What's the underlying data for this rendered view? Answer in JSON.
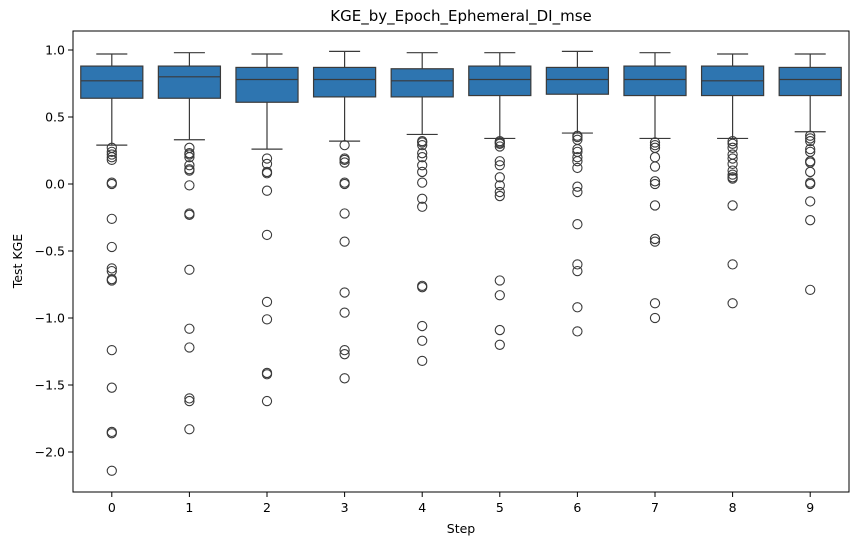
{
  "chart_data": {
    "type": "box",
    "title": "KGE_by_Epoch_Ephemeral_DI_mse",
    "xlabel": "Step",
    "ylabel": "Test KGE",
    "categories": [
      "0",
      "1",
      "2",
      "3",
      "4",
      "5",
      "6",
      "7",
      "8",
      "9"
    ],
    "yticks": [
      1.0,
      0.5,
      0.0,
      -0.5,
      -1.0,
      -1.5,
      -2.0
    ],
    "ytick_labels": [
      "1.0",
      "0.5",
      "0.0",
      "−0.5",
      "−1.0",
      "−1.5",
      "−2.0"
    ],
    "ylim": [
      -2.3,
      1.15
    ],
    "grid": false,
    "box_color": "#2e75b0",
    "line_color": "#3a3a3a",
    "boxes": [
      {
        "step": "0",
        "whisker_low": 0.29,
        "q1": 0.64,
        "median": 0.77,
        "q3": 0.88,
        "whisker_high": 0.97,
        "outliers": [
          0.27,
          0.24,
          0.22,
          0.2,
          0.18,
          0.01,
          0.0,
          -0.26,
          -0.47,
          -0.63,
          -0.65,
          -0.71,
          -0.72,
          -1.24,
          -1.52,
          -1.85,
          -1.86,
          -2.14
        ]
      },
      {
        "step": "1",
        "whisker_low": 0.33,
        "q1": 0.64,
        "median": 0.8,
        "q3": 0.88,
        "whisker_high": 0.98,
        "outliers": [
          0.27,
          0.23,
          0.22,
          0.2,
          0.14,
          0.11,
          0.1,
          -0.01,
          -0.22,
          -0.23,
          -0.64,
          -1.08,
          -1.22,
          -1.6,
          -1.62,
          -1.83
        ]
      },
      {
        "step": "2",
        "whisker_low": 0.26,
        "q1": 0.61,
        "median": 0.78,
        "q3": 0.87,
        "whisker_high": 0.97,
        "outliers": [
          0.19,
          0.15,
          0.09,
          0.08,
          -0.05,
          -0.38,
          -0.88,
          -1.01,
          -1.41,
          -1.42,
          -1.62
        ]
      },
      {
        "step": "3",
        "whisker_low": 0.32,
        "q1": 0.65,
        "median": 0.78,
        "q3": 0.87,
        "whisker_high": 0.99,
        "outliers": [
          0.29,
          0.19,
          0.18,
          0.16,
          0.01,
          0.0,
          -0.22,
          -0.43,
          -0.81,
          -0.96,
          -1.24,
          -1.27,
          -1.45
        ]
      },
      {
        "step": "4",
        "whisker_low": 0.37,
        "q1": 0.65,
        "median": 0.77,
        "q3": 0.86,
        "whisker_high": 0.98,
        "outliers": [
          0.32,
          0.31,
          0.29,
          0.23,
          0.2,
          0.14,
          0.09,
          0.01,
          -0.11,
          -0.17,
          -0.76,
          -0.77,
          -1.06,
          -1.17,
          -1.32
        ]
      },
      {
        "step": "5",
        "whisker_low": 0.34,
        "q1": 0.66,
        "median": 0.78,
        "q3": 0.88,
        "whisker_high": 0.98,
        "outliers": [
          0.32,
          0.31,
          0.3,
          0.28,
          0.17,
          0.14,
          0.05,
          -0.01,
          -0.06,
          -0.09,
          -0.72,
          -0.83,
          -1.09,
          -1.2
        ]
      },
      {
        "step": "6",
        "whisker_low": 0.38,
        "q1": 0.67,
        "median": 0.78,
        "q3": 0.87,
        "whisker_high": 0.99,
        "outliers": [
          0.36,
          0.35,
          0.33,
          0.26,
          0.24,
          0.2,
          0.17,
          0.12,
          -0.02,
          -0.06,
          -0.3,
          -0.6,
          -0.65,
          -0.92,
          -1.1
        ]
      },
      {
        "step": "7",
        "whisker_low": 0.34,
        "q1": 0.66,
        "median": 0.78,
        "q3": 0.88,
        "whisker_high": 0.98,
        "outliers": [
          0.31,
          0.29,
          0.27,
          0.2,
          0.13,
          0.02,
          0.0,
          -0.16,
          -0.41,
          -0.43,
          -0.89,
          -1.0
        ]
      },
      {
        "step": "8",
        "whisker_low": 0.34,
        "q1": 0.66,
        "median": 0.77,
        "q3": 0.88,
        "whisker_high": 0.97,
        "outliers": [
          0.32,
          0.3,
          0.27,
          0.22,
          0.19,
          0.15,
          0.1,
          0.07,
          0.05,
          0.04,
          -0.16,
          -0.6,
          -0.89
        ]
      },
      {
        "step": "9",
        "whisker_low": 0.39,
        "q1": 0.66,
        "median": 0.78,
        "q3": 0.87,
        "whisker_high": 0.97,
        "outliers": [
          0.36,
          0.34,
          0.32,
          0.26,
          0.24,
          0.17,
          0.16,
          0.09,
          0.01,
          0.0,
          -0.13,
          -0.27,
          -0.79
        ]
      }
    ]
  }
}
